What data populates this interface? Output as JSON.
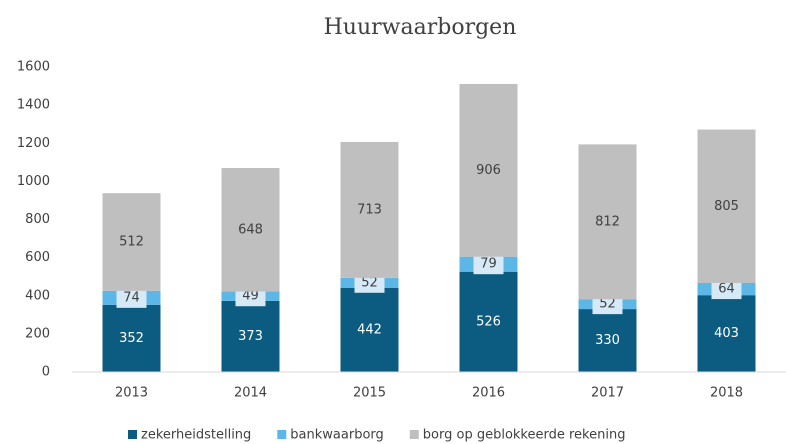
{
  "chart_data": {
    "type": "stacked_bar",
    "title": "Huurwaarborgen",
    "categories": [
      "2013",
      "2014",
      "2015",
      "2016",
      "2017",
      "2018"
    ],
    "series": [
      {
        "name": "zekerheidstelling",
        "color": "#0b5c80",
        "values": [
          352,
          373,
          442,
          526,
          330,
          403
        ]
      },
      {
        "name": "bankwaarborg",
        "color": "#5cb6e6",
        "values": [
          74,
          49,
          52,
          79,
          52,
          64
        ]
      },
      {
        "name": "borg op geblokkeerde rekening",
        "color": "#bfbfbf",
        "values": [
          512,
          648,
          713,
          906,
          812,
          805
        ]
      }
    ],
    "ylim": [
      0,
      1600
    ],
    "yticks": [
      0,
      200,
      400,
      600,
      800,
      1000,
      1200,
      1400,
      1600
    ],
    "grid": false,
    "legend": "bottom"
  }
}
